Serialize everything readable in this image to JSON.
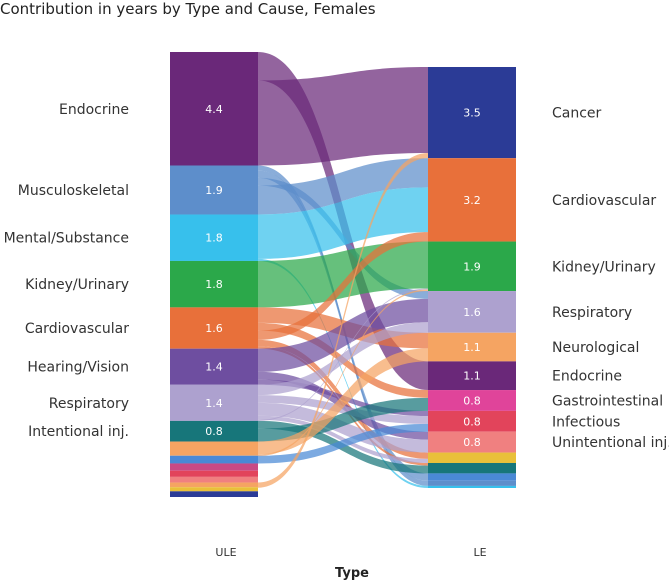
{
  "chart_data": {
    "type": "sankey",
    "title": "Contribution in years by Type and Cause, Females",
    "xlabel": "Type",
    "columns": [
      "ULE",
      "LE"
    ],
    "left": {
      "name": "ULE",
      "nodes": [
        {
          "label": "Endocrine",
          "value": 4.4,
          "value_label": "4.4",
          "color": "#6a2879"
        },
        {
          "label": "Musculoskeletal",
          "value": 1.9,
          "value_label": "1.9",
          "color": "#5d8ecb"
        },
        {
          "label": "Mental/Substance",
          "value": 1.8,
          "value_label": "1.8",
          "color": "#37c0ec"
        },
        {
          "label": "Kidney/Urinary",
          "value": 1.8,
          "value_label": "1.8",
          "color": "#2ba84a"
        },
        {
          "label": "Cardiovascular",
          "value": 1.6,
          "value_label": "1.6",
          "color": "#e8703a"
        },
        {
          "label": "Hearing/Vision",
          "value": 1.4,
          "value_label": "1.4",
          "color": "#6e4ea0"
        },
        {
          "label": "Respiratory",
          "value": 1.4,
          "value_label": "1.4",
          "color": "#ada1cf"
        },
        {
          "label": "Intentional inj.",
          "value": 0.8,
          "value_label": "0.8",
          "color": "#17767a"
        },
        {
          "label": "",
          "value": 0.55,
          "value_label": "",
          "color": "#f5a462"
        },
        {
          "label": "",
          "value": 0.3,
          "value_label": "",
          "color": "#4a89d6"
        },
        {
          "label": "",
          "value": 0.28,
          "value_label": "",
          "color": "#c94a86"
        },
        {
          "label": "",
          "value": 0.24,
          "value_label": "",
          "color": "#e2445b"
        },
        {
          "label": "",
          "value": 0.22,
          "value_label": "",
          "color": "#f08080"
        },
        {
          "label": "",
          "value": 0.18,
          "value_label": "",
          "color": "#f5a462"
        },
        {
          "label": "",
          "value": 0.16,
          "value_label": "",
          "color": "#e9c03a"
        },
        {
          "label": "",
          "value": 0.22,
          "value_label": "",
          "color": "#2b3b96"
        }
      ]
    },
    "right": {
      "name": "LE",
      "nodes": [
        {
          "label": "Cancer",
          "value": 3.5,
          "value_label": "3.5",
          "color": "#2b3b96"
        },
        {
          "label": "Cardiovascular",
          "value": 3.2,
          "value_label": "3.2",
          "color": "#e8703a"
        },
        {
          "label": "Kidney/Urinary",
          "value": 1.9,
          "value_label": "1.9",
          "color": "#2ba84a"
        },
        {
          "label": "Respiratory",
          "value": 1.6,
          "value_label": "1.6",
          "color": "#ada1cf"
        },
        {
          "label": "Neurological",
          "value": 1.1,
          "value_label": "1.1",
          "color": "#f5a462"
        },
        {
          "label": "Endocrine",
          "value": 1.1,
          "value_label": "1.1",
          "color": "#6a2879"
        },
        {
          "label": "Gastrointestinal",
          "value": 0.8,
          "value_label": "0.8",
          "color": "#e0449a"
        },
        {
          "label": "Infectious",
          "value": 0.8,
          "value_label": "0.8",
          "color": "#e2445b"
        },
        {
          "label": "Unintentional inj.",
          "value": 0.8,
          "value_label": "0.8",
          "color": "#f08080"
        },
        {
          "label": "",
          "value": 0.4,
          "value_label": "",
          "color": "#e9c03a"
        },
        {
          "label": "",
          "value": 0.4,
          "value_label": "",
          "color": "#17767a"
        },
        {
          "label": "",
          "value": 0.28,
          "value_label": "",
          "color": "#4a89d6"
        },
        {
          "label": "",
          "value": 0.2,
          "value_label": "",
          "color": "#5d8ecb"
        },
        {
          "label": "",
          "value": 0.08,
          "value_label": "",
          "color": "#37c0ec"
        }
      ]
    },
    "flows": [
      {
        "from": 0,
        "to": 5,
        "value": 1.1
      },
      {
        "from": 0,
        "to": 0,
        "value": 3.3
      },
      {
        "from": 1,
        "to": 12,
        "value": 0.2
      },
      {
        "from": 1,
        "to": 11,
        "value": 0.28
      },
      {
        "from": 1,
        "to": 3,
        "value": 0.3
      },
      {
        "from": 1,
        "to": 1,
        "value": 1.12
      },
      {
        "from": 2,
        "to": 1,
        "value": 1.72
      },
      {
        "from": 2,
        "to": 13,
        "value": 0.08
      },
      {
        "from": 3,
        "to": 2,
        "value": 1.8
      },
      {
        "from": 4,
        "to": 4,
        "value": 0.6
      },
      {
        "from": 4,
        "to": 6,
        "value": 0.3
      },
      {
        "from": 4,
        "to": 1,
        "value": 0.36
      },
      {
        "from": 4,
        "to": 9,
        "value": 0.24
      },
      {
        "from": 4,
        "to": 10,
        "value": 0.1
      },
      {
        "from": 5,
        "to": 3,
        "value": 0.9
      },
      {
        "from": 5,
        "to": 8,
        "value": 0.3
      },
      {
        "from": 5,
        "to": 7,
        "value": 0.2
      },
      {
        "from": 6,
        "to": 3,
        "value": 0.4
      },
      {
        "from": 6,
        "to": 7,
        "value": 0.3
      },
      {
        "from": 6,
        "to": 8,
        "value": 0.5
      },
      {
        "from": 6,
        "to": 9,
        "value": 0.16
      },
      {
        "from": 6,
        "to": 2,
        "value": 0.04
      },
      {
        "from": 7,
        "to": 10,
        "value": 0.3
      },
      {
        "from": 7,
        "to": 6,
        "value": 0.5
      },
      {
        "from": 8,
        "to": 4,
        "value": 0.5
      },
      {
        "from": 8,
        "to": 2,
        "value": 0.06
      },
      {
        "from": 9,
        "to": 7,
        "value": 0.3
      },
      {
        "from": 10,
        "to": 1,
        "value": 0.0
      },
      {
        "from": 10,
        "to": 7,
        "value": 0.0
      },
      {
        "from": 11,
        "to": 6,
        "value": 0.0
      },
      {
        "from": 12,
        "to": 8,
        "value": 0.0
      },
      {
        "from": 13,
        "to": 0,
        "value": 0.2
      },
      {
        "from": 14,
        "to": 9,
        "value": 0.0
      },
      {
        "from": 15,
        "to": 0,
        "value": 0.0
      }
    ]
  }
}
